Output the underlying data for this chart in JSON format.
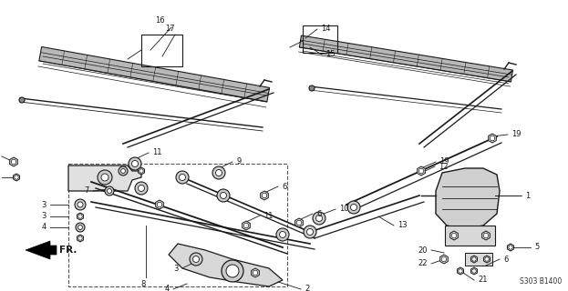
{
  "bg_color": "#ffffff",
  "fig_width": 6.23,
  "fig_height": 3.2,
  "dpi": 100,
  "diagram_code": "S303 B1400",
  "line_color": "#1a1a1a",
  "label_fontsize": 6.0
}
